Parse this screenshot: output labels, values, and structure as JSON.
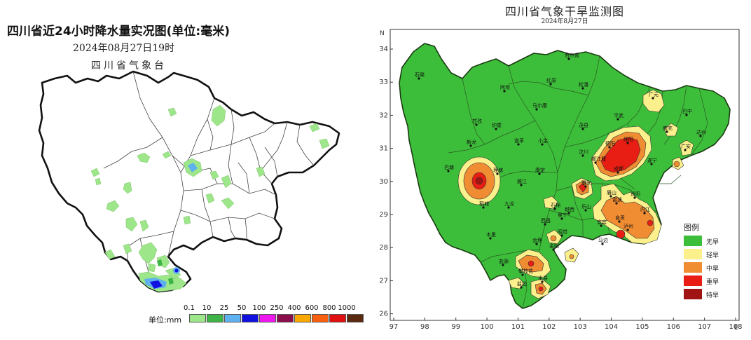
{
  "left_map": {
    "title": "四川省近24小时降水量实况图(单位:毫米)",
    "date": "2024年08月27日19时",
    "org": "四川省气象台",
    "legend": {
      "unit_label": "单位:mm",
      "ticks": [
        "0.1",
        "10",
        "25",
        "50",
        "100",
        "250",
        "400",
        "600",
        "800",
        "1000"
      ],
      "colors": [
        "#9ee68a",
        "#3db445",
        "#5fb0ee",
        "#1212e0",
        "#ee18ee",
        "#8a0e4c",
        "#f8a800",
        "#f86010",
        "#e01010",
        "#5a2a10"
      ]
    }
  },
  "right_map": {
    "title": "四川省气象干旱监测图",
    "date": "2024年8月27日",
    "north_label": "N",
    "east_label": "E",
    "x_ticks": [
      "97",
      "98",
      "99",
      "100",
      "101",
      "102",
      "103",
      "104",
      "105",
      "106",
      "107",
      "108"
    ],
    "y_ticks": [
      "34",
      "33",
      "32",
      "31",
      "30",
      "29",
      "28",
      "27",
      "26"
    ],
    "legend": {
      "title": "图例",
      "items": [
        {
          "label": "无旱",
          "color": "#3dbe3a"
        },
        {
          "label": "轻旱",
          "color": "#fbf08c"
        },
        {
          "label": "中旱",
          "color": "#f08c32"
        },
        {
          "label": "重旱",
          "color": "#e81e14"
        },
        {
          "label": "特旱",
          "color": "#a01414"
        }
      ]
    },
    "cities": [
      "石渠",
      "若尔盖",
      "阿坝",
      "红原",
      "松潘",
      "广元",
      "巴中",
      "甘孜",
      "马尔康",
      "茂县",
      "平武",
      "绵阳",
      "南充",
      "达州",
      "新龙",
      "炉霍",
      "道孚",
      "小金",
      "汶川",
      "都江堰",
      "成都",
      "德阳",
      "遂宁",
      "广安",
      "理塘",
      "康定",
      "雅安",
      "眉山",
      "资阳",
      "内江",
      "自贡",
      "泸州",
      "宜宾",
      "乐山",
      "稻城",
      "九龙",
      "石棉",
      "西昌",
      "越西",
      "冕宁",
      "木里",
      "会理",
      "攀枝花",
      "盐源",
      "昭觉",
      "马边",
      "雷波",
      "雅江",
      "巴塘",
      "金阳",
      "盐边",
      "米易"
    ]
  }
}
